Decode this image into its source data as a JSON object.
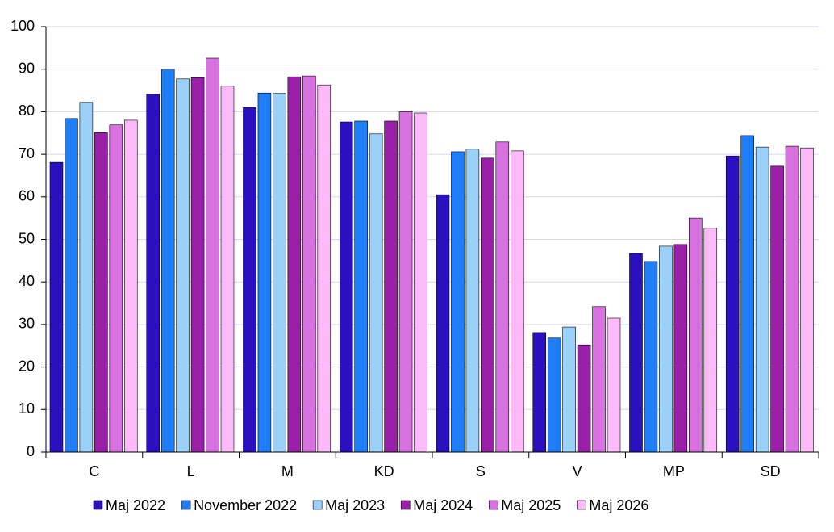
{
  "chart_data": {
    "type": "bar",
    "categories": [
      "C",
      "L",
      "M",
      "KD",
      "S",
      "V",
      "MP",
      "SD"
    ],
    "series": [
      {
        "name": "Maj 2022",
        "color": "#2a10bf",
        "values": [
          68.1,
          84.1,
          81,
          77.6,
          60.5,
          28.1,
          46.7,
          69.6
        ]
      },
      {
        "name": "November 2022",
        "color": "#1f7ef5",
        "values": [
          78.4,
          90,
          84.4,
          77.8,
          70.6,
          26.8,
          44.8,
          74.4
        ]
      },
      {
        "name": "Maj 2023",
        "color": "#9bd1f8",
        "values": [
          82.2,
          87.7,
          84.3,
          74.8,
          71.2,
          29.4,
          48.4,
          71.7
        ]
      },
      {
        "name": "Maj 2024",
        "color": "#9a20a8",
        "values": [
          75.1,
          88,
          88.2,
          77.8,
          69.1,
          25.2,
          48.8,
          67.2
        ]
      },
      {
        "name": "Maj 2025",
        "color": "#d872e0",
        "values": [
          76.9,
          92.6,
          88.4,
          80,
          72.9,
          34.2,
          55,
          71.9
        ]
      },
      {
        "name": "Maj 2026",
        "color": "#fcbaf8",
        "values": [
          78,
          86,
          86.3,
          79.7,
          70.8,
          31.5,
          52.6,
          71.5
        ]
      }
    ],
    "ylim": [
      0,
      100
    ],
    "yticks": [
      0,
      10,
      20,
      30,
      40,
      50,
      60,
      70,
      80,
      90,
      100
    ],
    "grid": true,
    "legend": "bottom"
  }
}
